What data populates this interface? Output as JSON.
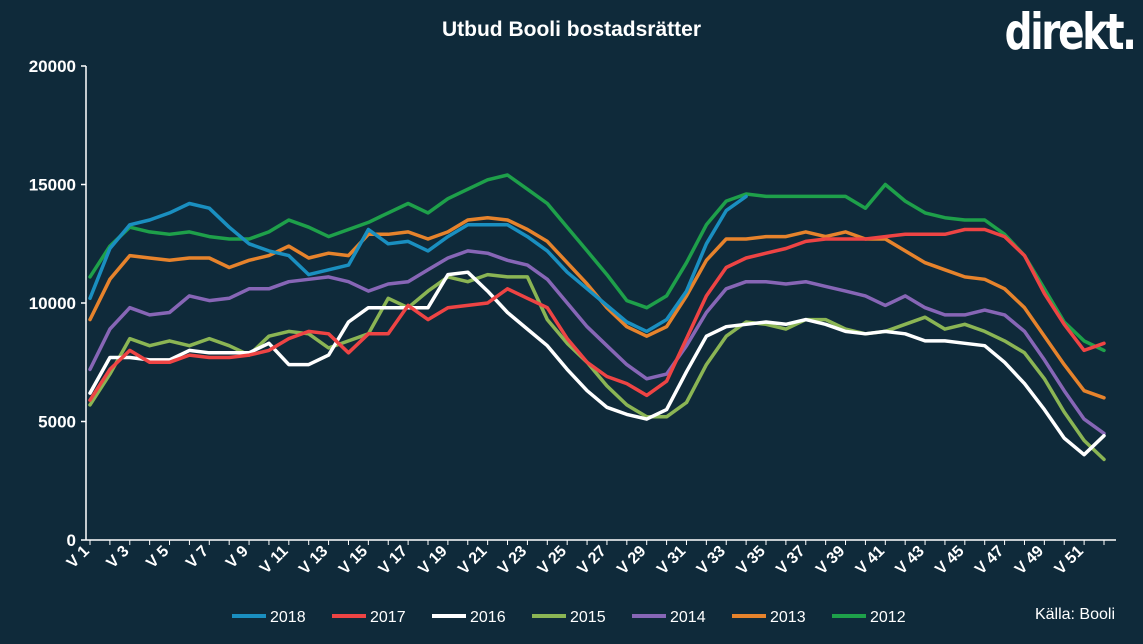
{
  "header": {
    "title": "Utbud Booli bostadsrätter",
    "logo_text": "direkt.",
    "source": "Källa: Booli"
  },
  "chart_data": {
    "type": "line",
    "title": "Utbud Booli bostadsrätter",
    "xlabel": "",
    "ylabel": "",
    "ylim": [
      0,
      20000
    ],
    "yticks": [
      0,
      5000,
      10000,
      15000,
      20000
    ],
    "x": [
      1,
      2,
      3,
      4,
      5,
      6,
      7,
      8,
      9,
      10,
      11,
      12,
      13,
      14,
      15,
      16,
      17,
      18,
      19,
      20,
      21,
      22,
      23,
      24,
      25,
      26,
      27,
      28,
      29,
      30,
      31,
      32,
      33,
      34,
      35,
      36,
      37,
      38,
      39,
      40,
      41,
      42,
      43,
      44,
      45,
      46,
      47,
      48,
      49,
      50,
      51,
      52
    ],
    "xtick_labels": [
      "V 1",
      "V 3",
      "V 5",
      "V 7",
      "V 9",
      "V 11",
      "V 13",
      "V 15",
      "V 17",
      "V 19",
      "V 21",
      "V 23",
      "V 25",
      "V 27",
      "V 29",
      "V 31",
      "V 33",
      "V 35",
      "V 37",
      "V 39",
      "V 41",
      "V 43",
      "V 45",
      "V 47",
      "V 49",
      "V 51"
    ],
    "grid": false,
    "legend_position": "bottom",
    "series": [
      {
        "name": "2018",
        "color": "#1a8fc0",
        "values": [
          10200,
          12300,
          13300,
          13500,
          13800,
          14200,
          14000,
          13200,
          12500,
          12200,
          12000,
          11200,
          11400,
          11600,
          13100,
          12500,
          12600,
          12200,
          12800,
          13300,
          13300,
          13300,
          12800,
          12200,
          11300,
          10600,
          9900,
          9200,
          8800,
          9300,
          10500,
          12500,
          13900,
          14500,
          null,
          null,
          null,
          null,
          null,
          null,
          null,
          null,
          null,
          null,
          null,
          null,
          null,
          null,
          null,
          null,
          null,
          null
        ]
      },
      {
        "name": "2017",
        "color": "#ee4444",
        "values": [
          5900,
          7200,
          8000,
          7500,
          7500,
          7800,
          7700,
          7700,
          7800,
          8000,
          8500,
          8800,
          8700,
          7900,
          8700,
          8700,
          9900,
          9300,
          9800,
          9900,
          10000,
          10600,
          10200,
          9800,
          8500,
          7500,
          6900,
          6600,
          6100,
          6700,
          8500,
          10300,
          11500,
          11900,
          12100,
          12300,
          12600,
          12700,
          12700,
          12700,
          12800,
          12900,
          12900,
          12900,
          13100,
          13100,
          12800,
          12000,
          10400,
          9100,
          8000,
          8300
        ]
      },
      {
        "name": "2016",
        "color": "#ffffff",
        "values": [
          6200,
          7700,
          7700,
          7600,
          7600,
          8000,
          7900,
          7900,
          7900,
          8300,
          7400,
          7400,
          7800,
          9200,
          9800,
          9800,
          9800,
          9800,
          11200,
          11300,
          10500,
          9600,
          8900,
          8200,
          7200,
          6300,
          5600,
          5300,
          5100,
          5500,
          7100,
          8600,
          9000,
          9100,
          9200,
          9100,
          9300,
          9100,
          8800,
          8700,
          8800,
          8700,
          8400,
          8400,
          8300,
          8200,
          7500,
          6600,
          5500,
          4300,
          3600,
          4400
        ]
      },
      {
        "name": "2015",
        "color": "#8bb554",
        "values": [
          5700,
          7000,
          8500,
          8200,
          8400,
          8200,
          8500,
          8200,
          7800,
          8600,
          8800,
          8700,
          8100,
          8400,
          8700,
          10200,
          9800,
          10500,
          11100,
          10900,
          11200,
          11100,
          11100,
          9300,
          8300,
          7500,
          6500,
          5700,
          5200,
          5200,
          5800,
          7400,
          8600,
          9200,
          9100,
          8900,
          9300,
          9300,
          8900,
          8700,
          8800,
          9100,
          9400,
          8900,
          9100,
          8800,
          8400,
          7900,
          6800,
          5400,
          4200,
          3400
        ]
      },
      {
        "name": "2014",
        "color": "#8766b6",
        "values": [
          7200,
          8900,
          9800,
          9500,
          9600,
          10300,
          10100,
          10200,
          10600,
          10600,
          10900,
          11000,
          11100,
          10900,
          10500,
          10800,
          10900,
          11400,
          11900,
          12200,
          12100,
          11800,
          11600,
          11000,
          10000,
          9000,
          8200,
          7400,
          6800,
          7000,
          8200,
          9600,
          10600,
          10900,
          10900,
          10800,
          10900,
          10700,
          10500,
          10300,
          9900,
          10300,
          9800,
          9500,
          9500,
          9700,
          9500,
          8800,
          7600,
          6300,
          5100,
          4500
        ]
      },
      {
        "name": "2013",
        "color": "#e6832c",
        "values": [
          9300,
          11000,
          12000,
          11900,
          11800,
          11900,
          11900,
          11500,
          11800,
          12000,
          12400,
          11900,
          12100,
          12000,
          12900,
          12900,
          13000,
          12700,
          13000,
          13500,
          13600,
          13500,
          13100,
          12600,
          11700,
          10800,
          9800,
          9000,
          8600,
          9000,
          10300,
          11800,
          12700,
          12700,
          12800,
          12800,
          13000,
          12800,
          13000,
          12700,
          12700,
          12200,
          11700,
          11400,
          11100,
          11000,
          10600,
          9800,
          8600,
          7400,
          6300,
          6000
        ]
      },
      {
        "name": "2012",
        "color": "#1ea04a",
        "values": [
          11100,
          12400,
          13200,
          13000,
          12900,
          13000,
          12800,
          12700,
          12700,
          13000,
          13500,
          13200,
          12800,
          13100,
          13400,
          13800,
          14200,
          13800,
          14400,
          14800,
          15200,
          15400,
          14800,
          14200,
          13200,
          12200,
          11200,
          10100,
          9800,
          10300,
          11700,
          13300,
          14300,
          14600,
          14500,
          14500,
          14500,
          14500,
          14500,
          14000,
          15000,
          14300,
          13800,
          13600,
          13500,
          13500,
          12900,
          12000,
          10600,
          9200,
          8400,
          8000
        ]
      }
    ]
  }
}
